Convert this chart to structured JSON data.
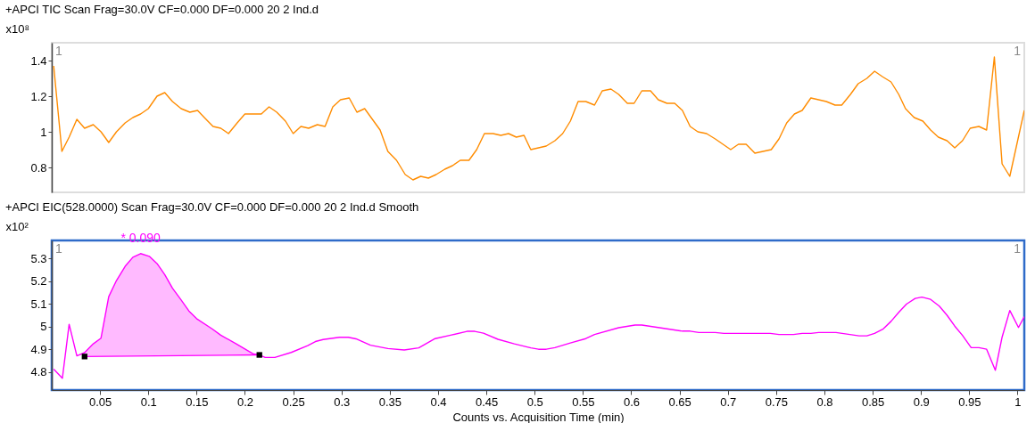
{
  "chart_data": [
    {
      "type": "line",
      "title": "+APCI TIC Scan Frag=30.0V CF=0.000 DF=0.000 20 2 Ind.d",
      "ylabel": "x10⁸",
      "xlim": [
        0,
        1.007
      ],
      "ylim": [
        0.66,
        1.5
      ],
      "yticks": [
        0.8,
        1,
        1.2,
        1.4
      ],
      "tick_labels": "y",
      "grid": false,
      "annotations": [
        "1",
        "1"
      ],
      "series": [
        {
          "color": "#ff8c00",
          "x": [
            0.002,
            0.0105,
            0.018,
            0.026,
            0.034,
            0.043,
            0.051,
            0.059,
            0.067,
            0.076,
            0.084,
            0.092,
            0.1,
            0.109,
            0.117,
            0.125,
            0.134,
            0.143,
            0.151,
            0.158,
            0.167,
            0.175,
            0.183,
            0.192,
            0.2,
            0.217,
            0.225,
            0.233,
            0.242,
            0.25,
            0.258,
            0.266,
            0.275,
            0.283,
            0.291,
            0.299,
            0.308,
            0.316,
            0.324,
            0.332,
            0.34,
            0.348,
            0.357,
            0.366,
            0.374,
            0.382,
            0.39,
            0.398,
            0.407,
            0.415,
            0.423,
            0.432,
            0.44,
            0.448,
            0.457,
            0.465,
            0.473,
            0.481,
            0.489,
            0.496,
            0.504,
            0.512,
            0.521,
            0.529,
            0.537,
            0.545,
            0.553,
            0.562,
            0.57,
            0.579,
            0.587,
            0.596,
            0.603,
            0.611,
            0.62,
            0.628,
            0.637,
            0.645,
            0.653,
            0.661,
            0.669,
            0.678,
            0.687,
            0.695,
            0.703,
            0.711,
            0.719,
            0.728,
            0.745,
            0.753,
            0.761,
            0.769,
            0.777,
            0.786,
            0.794,
            0.802,
            0.811,
            0.818,
            0.827,
            0.835,
            0.844,
            0.852,
            0.86,
            0.869,
            0.877,
            0.884,
            0.893,
            0.902,
            0.91,
            0.918,
            0.927,
            0.935,
            0.943,
            0.951,
            0.96,
            0.968,
            0.976,
            0.984,
            0.992,
            1.007
          ],
          "values": [
            1.37,
            0.89,
            0.97,
            1.07,
            1.02,
            1.04,
            1.0,
            0.94,
            1.0,
            1.05,
            1.08,
            1.1,
            1.13,
            1.2,
            1.22,
            1.17,
            1.13,
            1.11,
            1.12,
            1.08,
            1.03,
            1.02,
            0.99,
            1.05,
            1.1,
            1.1,
            1.14,
            1.11,
            1.06,
            0.99,
            1.03,
            1.02,
            1.04,
            1.03,
            1.14,
            1.18,
            1.19,
            1.11,
            1.13,
            1.07,
            1.01,
            0.89,
            0.84,
            0.76,
            0.73,
            0.75,
            0.74,
            0.76,
            0.79,
            0.81,
            0.84,
            0.84,
            0.9,
            0.99,
            0.99,
            0.98,
            0.99,
            0.97,
            0.98,
            0.9,
            0.91,
            0.92,
            0.95,
            0.99,
            1.06,
            1.17,
            1.17,
            1.15,
            1.23,
            1.24,
            1.21,
            1.16,
            1.16,
            1.23,
            1.23,
            1.18,
            1.16,
            1.16,
            1.12,
            1.03,
            1.0,
            0.99,
            0.96,
            0.93,
            0.9,
            0.93,
            0.93,
            0.88,
            0.9,
            0.96,
            1.05,
            1.1,
            1.12,
            1.19,
            1.18,
            1.17,
            1.15,
            1.15,
            1.21,
            1.27,
            1.3,
            1.34,
            1.31,
            1.28,
            1.21,
            1.13,
            1.08,
            1.06,
            1.01,
            0.97,
            0.95,
            0.91,
            0.95,
            1.02,
            1.03,
            1.01,
            1.42,
            0.82,
            0.75,
            1.12
          ]
        }
      ]
    },
    {
      "type": "line",
      "title": "+APCI EIC(528.0000) Scan Frag=30.0V CF=0.000 DF=0.000 20 2 Ind.d  Smooth",
      "ylabel": "x10²",
      "xlabel": "Counts vs. Acquisition Time (min)",
      "xlim": [
        0,
        1.007
      ],
      "xticks": [
        0.05,
        0.1,
        0.15,
        0.2,
        0.25,
        0.3,
        0.35,
        0.4,
        0.45,
        0.5,
        0.55,
        0.6,
        0.65,
        0.7,
        0.75,
        0.8,
        0.85,
        0.9,
        0.95,
        1
      ],
      "ylim": [
        4.72,
        5.38
      ],
      "yticks": [
        4.8,
        4.9,
        5,
        5.1,
        5.2,
        5.3
      ],
      "grid": false,
      "annotations": [
        {
          "text": "* 0.090",
          "x": 0.092,
          "y": 5.322
        },
        "1",
        "1"
      ],
      "series": [
        {
          "color": "#ff00ff",
          "x": [
            0.002,
            0.011,
            0.018,
            0.026,
            0.034,
            0.043,
            0.051,
            0.059,
            0.067,
            0.076,
            0.084,
            0.092,
            0.101,
            0.109,
            0.117,
            0.125,
            0.134,
            0.142,
            0.15,
            0.166,
            0.175,
            0.191,
            0.209,
            0.215,
            0.221,
            0.231,
            0.248,
            0.265,
            0.273,
            0.281,
            0.298,
            0.307,
            0.315,
            0.33,
            0.348,
            0.365,
            0.38,
            0.397,
            0.413,
            0.43,
            0.438,
            0.447,
            0.462,
            0.479,
            0.496,
            0.504,
            0.512,
            0.521,
            0.537,
            0.553,
            0.562,
            0.587,
            0.604,
            0.611,
            0.637,
            0.653,
            0.661,
            0.67,
            0.687,
            0.696,
            0.744,
            0.753,
            0.768,
            0.777,
            0.786,
            0.794,
            0.812,
            0.836,
            0.844,
            0.852,
            0.861,
            0.869,
            0.877,
            0.885,
            0.894,
            0.901,
            0.91,
            0.919,
            0.927,
            0.935,
            0.943,
            0.952,
            0.96,
            0.968,
            0.977,
            0.984,
            0.992,
            1.001,
            1.007
          ],
          "values": [
            4.812,
            4.772,
            5.01,
            4.871,
            4.885,
            4.924,
            4.949,
            5.132,
            5.203,
            5.266,
            5.306,
            5.322,
            5.31,
            5.278,
            5.229,
            5.169,
            5.117,
            5.069,
            5.035,
            4.99,
            4.962,
            4.924,
            4.879,
            4.875,
            4.864,
            4.864,
            4.886,
            4.916,
            4.934,
            4.943,
            4.953,
            4.953,
            4.946,
            4.918,
            4.903,
            4.897,
            4.906,
            4.947,
            4.962,
            4.979,
            4.979,
            4.971,
            4.944,
            4.924,
            4.906,
            4.9,
            4.9,
            4.907,
            4.928,
            4.947,
            4.965,
            4.995,
            5.007,
            5.007,
            4.99,
            4.98,
            4.98,
            4.974,
            4.974,
            4.97,
            4.97,
            4.965,
            4.965,
            4.97,
            4.97,
            4.974,
            4.974,
            4.959,
            4.959,
            4.97,
            4.99,
            5.023,
            5.063,
            5.099,
            5.124,
            5.13,
            5.12,
            5.09,
            5.05,
            5.002,
            4.961,
            4.907,
            4.907,
            4.9,
            4.807,
            4.953,
            5.071,
            4.996,
            5.044
          ],
          "lower": [
            null,
            null,
            null,
            null,
            4.868,
            4.868,
            4.869,
            4.869,
            4.869,
            4.87,
            4.87,
            4.87,
            4.871,
            4.871,
            4.871,
            4.872,
            4.872,
            4.872,
            4.872,
            4.873,
            4.873,
            4.874,
            4.875,
            4.875,
            null,
            null,
            null,
            null,
            null,
            null,
            null,
            null,
            null,
            null,
            null,
            null,
            null,
            null,
            null,
            null,
            null,
            null,
            null,
            null,
            null,
            null,
            null,
            null,
            null,
            null,
            null,
            null,
            null,
            null,
            null,
            null,
            null,
            null,
            null,
            null,
            null,
            null,
            null,
            null,
            null,
            null,
            null,
            null,
            null,
            null,
            null,
            null,
            null,
            null,
            null,
            null,
            null,
            null,
            null,
            null,
            null,
            null,
            null,
            null,
            null,
            null,
            null,
            null,
            null
          ],
          "upper": [
            null,
            null,
            null,
            null,
            4.885,
            4.924,
            4.949,
            5.132,
            5.203,
            5.266,
            5.306,
            5.322,
            5.31,
            5.278,
            5.229,
            5.169,
            5.117,
            5.069,
            5.035,
            4.99,
            4.962,
            4.924,
            4.879,
            4.875,
            null,
            null,
            null,
            null,
            null,
            null,
            null,
            null,
            null,
            null,
            null,
            null,
            null,
            null,
            null,
            null,
            null,
            null,
            null,
            null,
            null,
            null,
            null,
            null,
            null,
            null,
            null,
            null,
            null,
            null,
            null,
            null,
            null,
            null,
            null,
            null,
            null,
            null,
            null,
            null,
            null,
            null,
            null,
            null,
            null,
            null,
            null,
            null,
            null,
            null,
            null,
            null,
            null,
            null,
            null,
            null,
            null,
            null,
            null,
            null,
            null,
            null,
            null,
            null,
            null
          ]
        },
        {
          "color": "#ff00ff",
          "x": [
            0.034,
            0.215
          ],
          "values": [
            4.868,
            4.875
          ]
        },
        {
          "type": "scatter",
          "color": "#000000",
          "marker": "square",
          "x": [
            0.034,
            0.215
          ],
          "values": [
            4.868,
            4.875
          ]
        }
      ]
    }
  ]
}
